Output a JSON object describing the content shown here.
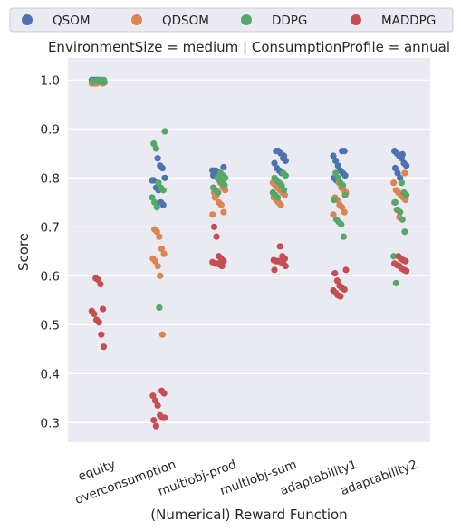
{
  "chart_data": {
    "type": "scatter",
    "title": "EnvironmentSize = medium | ConsumptionProfile = annual",
    "xlabel": "(Numerical) Reward Function",
    "ylabel": "Score",
    "ylim": [
      0.26,
      1.045
    ],
    "yticks": [
      "0.3",
      "0.4",
      "0.5",
      "0.6",
      "0.7",
      "0.8",
      "0.9",
      "1.0"
    ],
    "grid": true,
    "legend_position": "top",
    "categories": [
      "equity",
      "overconsumption",
      "multiobj-prod",
      "multiobj-sum",
      "adaptability1",
      "adaptability2"
    ],
    "series": [
      {
        "name": "QSOM",
        "color": "#4c72b0",
        "values": [
          [
            1.0,
            1.0,
            1.0,
            1.0,
            1.0,
            1.0,
            1.0,
            1.0,
            1.0,
            1.0
          ],
          [
            0.84,
            0.825,
            0.82,
            0.8,
            0.795,
            0.78,
            0.775,
            0.75,
            0.745,
            0.795
          ],
          [
            0.822,
            0.815,
            0.81,
            0.812,
            0.8,
            0.79,
            0.785,
            0.805,
            0.815,
            0.808
          ],
          [
            0.855,
            0.855,
            0.85,
            0.84,
            0.835,
            0.83,
            0.82,
            0.815,
            0.81,
            0.845
          ],
          [
            0.855,
            0.855,
            0.845,
            0.835,
            0.825,
            0.815,
            0.81,
            0.805,
            0.8,
            0.795
          ],
          [
            0.855,
            0.85,
            0.845,
            0.84,
            0.83,
            0.825,
            0.82,
            0.81,
            0.8,
            0.848
          ]
        ]
      },
      {
        "name": "QDSOM",
        "color": "#dd8452",
        "values": [
          [
            0.995,
            0.995,
            0.995,
            0.995,
            0.995,
            0.995,
            0.993,
            0.993,
            0.993,
            0.993
          ],
          [
            0.695,
            0.69,
            0.68,
            0.655,
            0.645,
            0.635,
            0.63,
            0.62,
            0.6,
            0.48
          ],
          [
            0.79,
            0.78,
            0.775,
            0.77,
            0.765,
            0.75,
            0.745,
            0.73,
            0.725,
            0.76
          ],
          [
            0.79,
            0.785,
            0.78,
            0.775,
            0.77,
            0.765,
            0.76,
            0.755,
            0.75,
            0.745
          ],
          [
            0.79,
            0.78,
            0.775,
            0.77,
            0.76,
            0.755,
            0.745,
            0.74,
            0.73,
            0.725
          ],
          [
            0.81,
            0.79,
            0.775,
            0.77,
            0.765,
            0.76,
            0.755,
            0.75,
            0.735,
            0.72
          ]
        ]
      },
      {
        "name": "DDPG",
        "color": "#55a868",
        "values": [
          [
            1.0,
            1.0,
            1.0,
            0.998,
            0.998,
            0.998,
            0.997,
            0.997,
            0.996,
            0.996
          ],
          [
            0.895,
            0.87,
            0.86,
            0.79,
            0.78,
            0.775,
            0.76,
            0.75,
            0.74,
            0.535
          ],
          [
            0.8,
            0.795,
            0.79,
            0.785,
            0.78,
            0.775,
            0.77,
            0.81,
            0.805,
            0.8
          ],
          [
            0.81,
            0.805,
            0.8,
            0.795,
            0.79,
            0.785,
            0.775,
            0.77,
            0.765,
            0.76
          ],
          [
            0.81,
            0.8,
            0.79,
            0.785,
            0.765,
            0.755,
            0.715,
            0.71,
            0.705,
            0.68
          ],
          [
            0.79,
            0.77,
            0.765,
            0.75,
            0.735,
            0.73,
            0.715,
            0.69,
            0.64,
            0.585
          ]
        ]
      },
      {
        "name": "MADDPG",
        "color": "#c44e52",
        "values": [
          [
            0.595,
            0.592,
            0.583,
            0.532,
            0.528,
            0.522,
            0.51,
            0.505,
            0.48,
            0.455
          ],
          [
            0.365,
            0.36,
            0.355,
            0.345,
            0.335,
            0.315,
            0.31,
            0.31,
            0.305,
            0.293
          ],
          [
            0.7,
            0.68,
            0.64,
            0.635,
            0.63,
            0.628,
            0.625,
            0.625,
            0.623,
            0.62
          ],
          [
            0.66,
            0.64,
            0.635,
            0.632,
            0.63,
            0.63,
            0.628,
            0.625,
            0.62,
            0.612
          ],
          [
            0.612,
            0.605,
            0.59,
            0.58,
            0.575,
            0.572,
            0.57,
            0.565,
            0.56,
            0.558
          ],
          [
            0.64,
            0.635,
            0.632,
            0.63,
            0.625,
            0.622,
            0.62,
            0.615,
            0.612,
            0.61
          ]
        ]
      }
    ]
  }
}
